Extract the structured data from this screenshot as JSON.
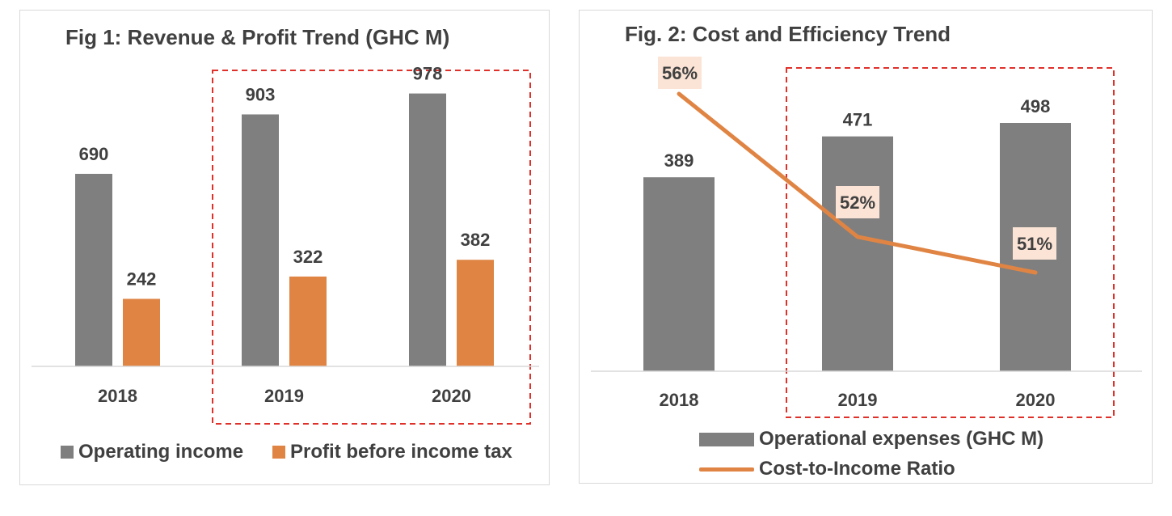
{
  "colors": {
    "bar_gray": "#7f7f7f",
    "bar_orange": "#e08444",
    "highlight_box": "#e0302a",
    "label_box": "#fbe4d6",
    "text": "#404040"
  },
  "chart_data": [
    {
      "type": "bar",
      "title": "Fig 1: Revenue & Profit Trend (GHC M)",
      "categories": [
        "2018",
        "2019",
        "2020"
      ],
      "series": [
        {
          "name": "Operating income",
          "values": [
            690,
            903,
            978
          ],
          "labels": [
            "690",
            "903",
            "978"
          ]
        },
        {
          "name": "Profit before income tax",
          "values": [
            242,
            322,
            382
          ],
          "labels": [
            "242",
            "322",
            "382"
          ]
        }
      ],
      "ylim": [
        0,
        1000
      ],
      "grid": false,
      "highlight": [
        "2019",
        "2020"
      ],
      "legend_position": "bottom"
    },
    {
      "type": "bar",
      "title": "Fig. 2: Cost and Efficiency Trend",
      "categories": [
        "2018",
        "2019",
        "2020"
      ],
      "series": [
        {
          "name": "Operational expenses (GHC M)",
          "type": "bar",
          "values": [
            389,
            471,
            498
          ],
          "labels": [
            "389",
            "471",
            "498"
          ]
        },
        {
          "name": "Cost-to-Income Ratio",
          "type": "line",
          "axis": "secondary",
          "values": [
            56,
            52,
            51
          ],
          "labels": [
            "56%",
            "52%",
            "51%"
          ]
        }
      ],
      "ylim": [
        0,
        550
      ],
      "y2lim": [
        40,
        58
      ],
      "grid": false,
      "highlight": [
        "2019",
        "2020"
      ],
      "legend_position": "bottom"
    }
  ]
}
